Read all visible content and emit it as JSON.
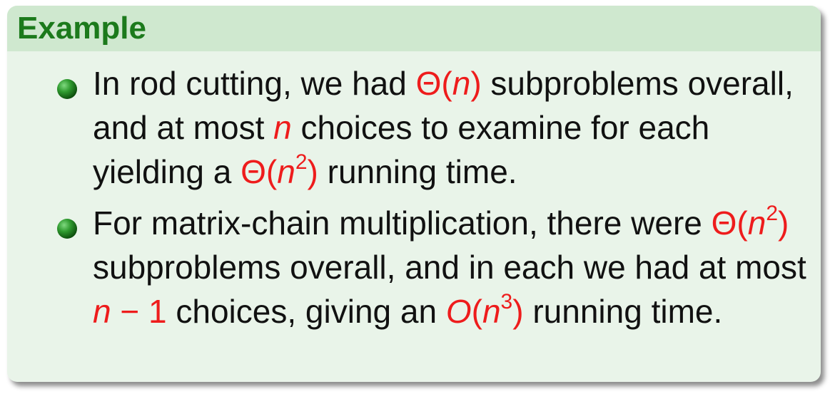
{
  "title": "Example",
  "items": [
    {
      "t1": "In rod cutting, we had ",
      "m1_theta": "Θ(",
      "m1_var": "n",
      "m1_close": ")",
      "t2": " subproblems overall, and at most ",
      "m2_var": "n",
      "t3": " choices to examine for each yielding a ",
      "m3_theta": "Θ(",
      "m3_var": "n",
      "m3_exp": "2",
      "m3_close": ")",
      "t4": " running time."
    },
    {
      "t1": "For matrix-chain multiplication, there were ",
      "m1_theta": "Θ(",
      "m1_var": "n",
      "m1_exp": "2",
      "m1_close": ")",
      "t2": " subproblems overall, and in each we had at most ",
      "m2_var": "n",
      "m2_rest": " − 1",
      "t3": " choices, giving an ",
      "m3_O": "O",
      "m3_open": "(",
      "m3_var": "n",
      "m3_exp": "3",
      "m3_close": ")",
      "t4": " running time."
    }
  ]
}
